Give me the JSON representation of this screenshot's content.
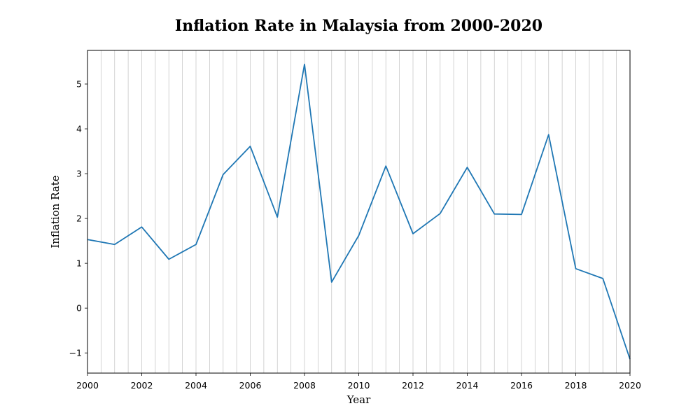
{
  "chart_data": {
    "type": "line",
    "title": "Inflation Rate in Malaysia from 2000-2020",
    "xlabel": "Year",
    "ylabel": "Inflation Rate",
    "xlim": [
      2000,
      2020
    ],
    "ylim": [
      -1.45,
      5.75
    ],
    "x_ticks": [
      2000,
      2002,
      2004,
      2006,
      2008,
      2010,
      2012,
      2014,
      2016,
      2018,
      2020
    ],
    "x_tick_labels": [
      "2000",
      "2002",
      "2004",
      "2006",
      "2008",
      "2010",
      "2012",
      "2014",
      "2016",
      "2018",
      "2020"
    ],
    "y_ticks": [
      -1,
      0,
      1,
      2,
      3,
      4,
      5
    ],
    "y_tick_labels": [
      "−1",
      "0",
      "1",
      "2",
      "3",
      "4",
      "5"
    ],
    "grid": "vertical minor gridlines",
    "series": [
      {
        "color": "#1f77b4",
        "x": [
          2000,
          2001,
          2002,
          2003,
          2004,
          2005,
          2006,
          2007,
          2008,
          2009,
          2010,
          2011,
          2012,
          2013,
          2014,
          2015,
          2016,
          2017,
          2018,
          2019,
          2020
        ],
        "y": [
          1.53,
          1.42,
          1.81,
          1.09,
          1.42,
          2.98,
          3.61,
          2.03,
          5.44,
          0.58,
          1.62,
          3.17,
          1.66,
          2.11,
          3.14,
          2.1,
          2.09,
          3.87,
          0.88,
          0.66,
          -1.14
        ]
      }
    ]
  }
}
